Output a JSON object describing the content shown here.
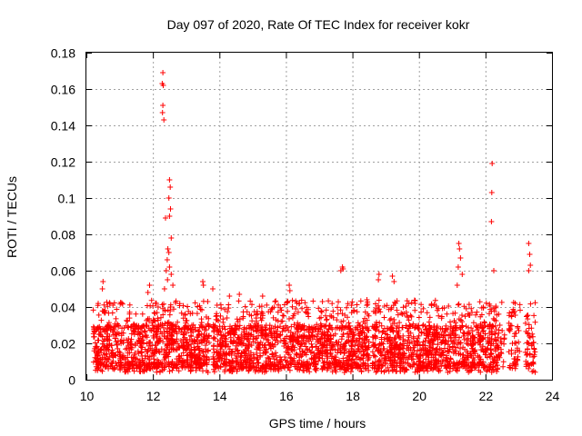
{
  "chart_data": {
    "type": "scatter",
    "title": "Day 097 of 2020, Rate Of TEC Index for receiver kokr",
    "xlabel": "GPS time / hours",
    "ylabel": "ROTI / TECUs",
    "xlim": [
      10,
      24
    ],
    "ylim": [
      0,
      0.18
    ],
    "x_ticks": [
      "10",
      "12",
      "14",
      "16",
      "18",
      "20",
      "22",
      "24"
    ],
    "y_ticks": [
      "0",
      "0.02",
      "0.04",
      "0.06",
      "0.08",
      "0.1",
      "0.12",
      "0.14",
      "0.16",
      "0.18"
    ],
    "grid": true,
    "marker": "+",
    "color": "#ff0000",
    "series": [
      {
        "name": "ROTI",
        "points": [
          [
            12.3,
            0.169
          ],
          [
            12.28,
            0.163
          ],
          [
            12.31,
            0.162
          ],
          [
            12.3,
            0.151
          ],
          [
            12.29,
            0.147
          ],
          [
            12.33,
            0.143
          ],
          [
            12.5,
            0.11
          ],
          [
            12.52,
            0.106
          ],
          [
            12.48,
            0.1
          ],
          [
            12.53,
            0.094
          ],
          [
            12.38,
            0.089
          ],
          [
            12.5,
            0.09
          ],
          [
            12.55,
            0.078
          ],
          [
            12.45,
            0.072
          ],
          [
            12.48,
            0.07
          ],
          [
            12.43,
            0.066
          ],
          [
            12.5,
            0.062
          ],
          [
            12.4,
            0.06
          ],
          [
            12.55,
            0.058
          ],
          [
            12.44,
            0.055
          ],
          [
            12.6,
            0.052
          ],
          [
            12.35,
            0.05
          ],
          [
            22.2,
            0.119
          ],
          [
            22.19,
            0.103
          ],
          [
            22.18,
            0.087
          ],
          [
            22.25,
            0.06
          ],
          [
            23.3,
            0.075
          ],
          [
            23.33,
            0.069
          ],
          [
            23.35,
            0.063
          ],
          [
            23.3,
            0.06
          ],
          [
            21.2,
            0.075
          ],
          [
            21.22,
            0.072
          ],
          [
            21.25,
            0.067
          ],
          [
            21.18,
            0.062
          ],
          [
            21.3,
            0.058
          ],
          [
            21.15,
            0.052
          ],
          [
            17.7,
            0.062
          ],
          [
            17.72,
            0.061
          ],
          [
            17.65,
            0.06
          ],
          [
            18.8,
            0.058
          ],
          [
            18.78,
            0.055
          ],
          [
            19.2,
            0.057
          ],
          [
            19.25,
            0.054
          ],
          [
            10.5,
            0.054
          ],
          [
            10.48,
            0.05
          ],
          [
            13.5,
            0.054
          ],
          [
            13.52,
            0.052
          ],
          [
            16.1,
            0.052
          ],
          [
            16.12,
            0.049
          ],
          [
            11.9,
            0.052
          ],
          [
            11.85,
            0.048
          ],
          [
            13.8,
            0.05
          ],
          [
            14.3,
            0.046
          ],
          [
            14.6,
            0.047
          ],
          [
            15.3,
            0.046
          ]
        ]
      }
    ],
    "segments": [
      {
        "start": 10.2,
        "end": 13.7,
        "density": 1.0
      },
      {
        "start": 13.8,
        "end": 18.5,
        "density": 1.0
      },
      {
        "start": 18.6,
        "end": 22.4,
        "density": 1.0
      },
      {
        "start": 22.4,
        "end": 22.6,
        "density": 0.3
      },
      {
        "start": 22.7,
        "end": 23.05,
        "density": 0.6
      },
      {
        "start": 23.2,
        "end": 23.5,
        "density": 0.7
      }
    ]
  }
}
